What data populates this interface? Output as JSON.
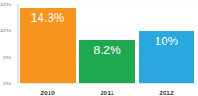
{
  "chart_data": {
    "type": "bar",
    "categories": [
      "2010",
      "2011",
      "2012"
    ],
    "values": [
      14.3,
      8.2,
      10
    ],
    "value_labels": [
      "14.3%",
      "8.2%",
      "10%"
    ],
    "colors": [
      "#f7941d",
      "#1fa84f",
      "#2aa7df"
    ],
    "ylim": [
      0,
      15
    ],
    "yticks": [
      {
        "value": 0,
        "label": "0%"
      },
      {
        "value": 5,
        "label": "5%"
      },
      {
        "value": 10,
        "label": "10%"
      },
      {
        "value": 15,
        "label": "15%"
      }
    ],
    "grid": true,
    "data_labels": true
  }
}
